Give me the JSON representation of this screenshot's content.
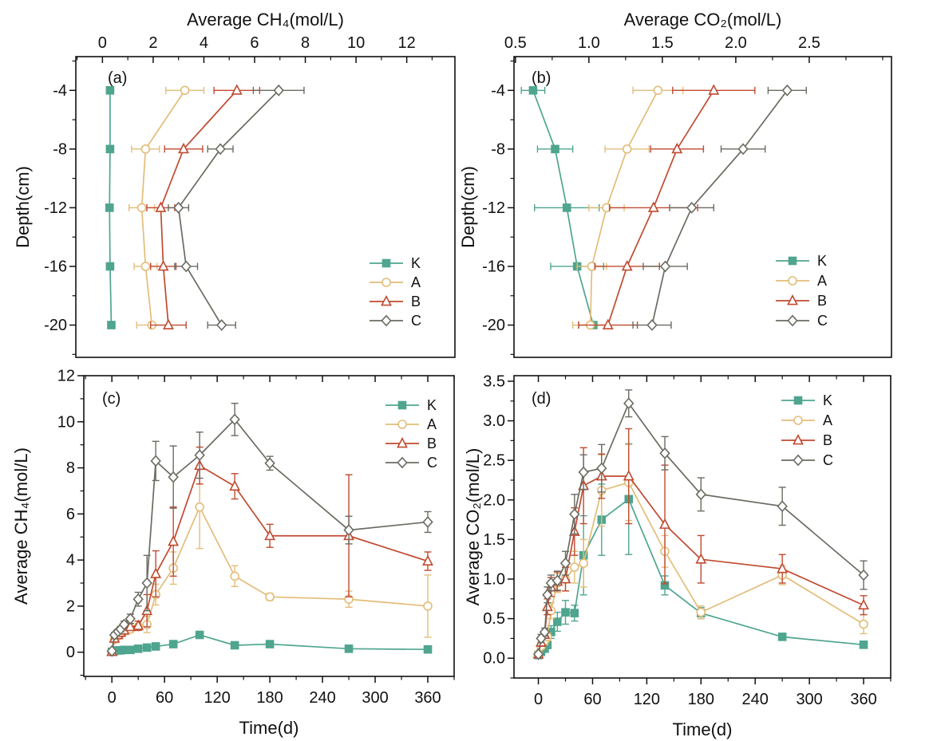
{
  "figure": {
    "background": "#ffffff",
    "series_colors": {
      "K": "#4fa58f",
      "A": "#e3bd79",
      "B": "#c04a30",
      "C": "#6b6b62"
    }
  },
  "chart_data": [
    {
      "id": "a",
      "panel_label": "(a)",
      "type": "line",
      "x_axis_position": "top",
      "xlabel": "Average CH₄(mol/L)",
      "ylabel": "Depth(cm)",
      "xlim": [
        -1.05,
        13.9
      ],
      "xticks": [
        0,
        2,
        4,
        6,
        8,
        10,
        12
      ],
      "x_minor_step": 1,
      "x_decimals": 0,
      "ylim": [
        -22.2,
        -1.7
      ],
      "yticks": [
        -4,
        -8,
        -12,
        -16,
        -20
      ],
      "y_minor_step": 2,
      "y_decimals": 0,
      "grid": false,
      "err_axis": "x",
      "legend": {
        "position": "middle-right",
        "entries": [
          "K",
          "A",
          "B",
          "C"
        ]
      },
      "series": [
        {
          "name": "K",
          "marker": "square",
          "filled": true,
          "color": "#4fa58f",
          "x": [
            0.3,
            0.3,
            0.28,
            0.3,
            0.35
          ],
          "y": [
            -4,
            -8,
            -12,
            -16,
            -20
          ],
          "err": [
            0.07,
            0.07,
            0.07,
            0.07,
            0.12
          ]
        },
        {
          "name": "A",
          "marker": "circle",
          "filled": false,
          "color": "#e3bd79",
          "x": [
            3.25,
            1.7,
            1.55,
            1.7,
            1.95
          ],
          "y": [
            -4,
            -8,
            -12,
            -16,
            -20
          ],
          "err": [
            0.75,
            0.55,
            0.5,
            0.45,
            0.6
          ]
        },
        {
          "name": "B",
          "marker": "triangle",
          "filled": false,
          "color": "#c04a30",
          "x": [
            5.3,
            3.2,
            2.3,
            2.4,
            2.6
          ],
          "y": [
            -4,
            -8,
            -12,
            -16,
            -20
          ],
          "err": [
            0.9,
            0.75,
            0.55,
            0.5,
            0.7
          ]
        },
        {
          "name": "C",
          "marker": "diamond",
          "filled": false,
          "color": "#6b6b62",
          "x": [
            6.95,
            4.65,
            3.0,
            3.3,
            4.7
          ],
          "y": [
            -4,
            -8,
            -12,
            -16,
            -20
          ],
          "err": [
            1.0,
            0.5,
            0.4,
            0.45,
            0.55
          ]
        }
      ]
    },
    {
      "id": "b",
      "panel_label": "(b)",
      "type": "line",
      "x_axis_position": "top",
      "xlabel": "Average CO₂(mol/L)",
      "ylabel": "Depth(cm)",
      "xlim": [
        0.49,
        3.06
      ],
      "xticks": [
        0.5,
        1.0,
        1.5,
        2.0,
        2.5
      ],
      "x_minor_step": 0.25,
      "x_decimals": 1,
      "ylim": [
        -22.2,
        -1.7
      ],
      "yticks": [
        -4,
        -8,
        -12,
        -16,
        -20
      ],
      "y_minor_step": 2,
      "y_decimals": 0,
      "grid": false,
      "err_axis": "x",
      "legend": {
        "position": "middle-right",
        "entries": [
          "K",
          "A",
          "B",
          "C"
        ]
      },
      "series": [
        {
          "name": "K",
          "marker": "square",
          "filled": true,
          "color": "#4fa58f",
          "x": [
            0.62,
            0.77,
            0.85,
            0.92,
            1.03
          ],
          "y": [
            -4,
            -8,
            -12,
            -16,
            -20
          ],
          "err": [
            0.08,
            0.12,
            0.22,
            0.18,
            0.1
          ]
        },
        {
          "name": "A",
          "marker": "circle",
          "filled": false,
          "color": "#e3bd79",
          "x": [
            1.47,
            1.26,
            1.12,
            1.02,
            1.01
          ],
          "y": [
            -4,
            -8,
            -12,
            -16,
            -20
          ],
          "err": [
            0.17,
            0.15,
            0.12,
            0.1,
            0.12
          ]
        },
        {
          "name": "B",
          "marker": "triangle",
          "filled": false,
          "color": "#c04a30",
          "x": [
            1.85,
            1.6,
            1.44,
            1.26,
            1.13
          ],
          "y": [
            -4,
            -8,
            -12,
            -16,
            -20
          ],
          "err": [
            0.28,
            0.18,
            0.3,
            0.22,
            0.2
          ]
        },
        {
          "name": "C",
          "marker": "diamond",
          "filled": false,
          "color": "#6b6b62",
          "x": [
            2.35,
            2.05,
            1.7,
            1.52,
            1.43
          ],
          "y": [
            -4,
            -8,
            -12,
            -16,
            -20
          ],
          "err": [
            0.13,
            0.15,
            0.15,
            0.15,
            0.13
          ]
        }
      ]
    },
    {
      "id": "c",
      "panel_label": "(c)",
      "type": "line",
      "x_axis_position": "bottom",
      "xlabel": "Time(d)",
      "ylabel": "Average CH₄(mol/L)",
      "xlim": [
        -32,
        390
      ],
      "xticks": [
        0,
        60,
        120,
        180,
        240,
        300,
        360
      ],
      "x_minor_step": 30,
      "x_decimals": 0,
      "ylim": [
        -1.05,
        12
      ],
      "yticks": [
        0,
        2,
        4,
        6,
        8,
        10,
        12
      ],
      "y_minor_step": 1,
      "y_decimals": 0,
      "grid": false,
      "err_axis": "y",
      "legend": {
        "position": "top-right",
        "entries": [
          "K",
          "A",
          "B",
          "C"
        ]
      },
      "series": [
        {
          "name": "K",
          "marker": "square",
          "filled": true,
          "color": "#4fa58f",
          "x": [
            0,
            3,
            7,
            10,
            14,
            21,
            30,
            40,
            50,
            70,
            100,
            140,
            180,
            270,
            360
          ],
          "y": [
            0.02,
            0.05,
            0.08,
            0.08,
            0.1,
            0.1,
            0.15,
            0.2,
            0.25,
            0.35,
            0.75,
            0.3,
            0.35,
            0.15,
            0.12
          ],
          "err": [
            0.01,
            0.02,
            0.02,
            0.02,
            0.03,
            0.03,
            0.04,
            0.05,
            0.05,
            0.06,
            0.1,
            0.06,
            0.06,
            0.04,
            0.04
          ]
        },
        {
          "name": "A",
          "marker": "circle",
          "filled": false,
          "color": "#e3bd79",
          "x": [
            0,
            3,
            7,
            10,
            14,
            21,
            30,
            40,
            50,
            70,
            100,
            140,
            180,
            270,
            360
          ],
          "y": [
            0.02,
            0.55,
            0.7,
            0.8,
            0.9,
            1.0,
            1.1,
            1.2,
            2.5,
            3.65,
            6.3,
            3.3,
            2.4,
            2.3,
            2.0
          ],
          "err": [
            0.01,
            0.08,
            0.1,
            0.1,
            0.12,
            0.15,
            0.15,
            0.35,
            0.45,
            0.7,
            1.8,
            0.45,
            0.15,
            0.35,
            1.35
          ]
        },
        {
          "name": "B",
          "marker": "triangle",
          "filled": false,
          "color": "#c04a30",
          "x": [
            0,
            3,
            7,
            10,
            14,
            21,
            30,
            40,
            50,
            70,
            100,
            140,
            180,
            270,
            360
          ],
          "y": [
            0.02,
            0.6,
            0.75,
            0.85,
            0.95,
            1.1,
            1.15,
            1.8,
            3.4,
            4.8,
            8.1,
            7.2,
            5.05,
            5.05,
            3.95
          ],
          "err": [
            0.01,
            0.1,
            0.1,
            0.1,
            0.12,
            0.15,
            0.2,
            0.7,
            1.0,
            1.5,
            0.8,
            0.55,
            0.5,
            2.65,
            0.4
          ]
        },
        {
          "name": "C",
          "marker": "diamond",
          "filled": false,
          "color": "#6b6b62",
          "x": [
            0,
            3,
            7,
            10,
            14,
            21,
            30,
            40,
            50,
            70,
            100,
            140,
            180,
            270,
            360
          ],
          "y": [
            0.05,
            0.75,
            0.9,
            1.0,
            1.2,
            1.45,
            2.3,
            3.0,
            8.3,
            7.6,
            8.55,
            10.1,
            8.2,
            5.3,
            5.65
          ],
          "err": [
            0.01,
            0.1,
            0.1,
            0.12,
            0.15,
            0.2,
            0.3,
            1.2,
            0.85,
            1.35,
            1.0,
            0.7,
            0.3,
            0.6,
            0.45
          ]
        }
      ]
    },
    {
      "id": "d",
      "panel_label": "(d)",
      "type": "line",
      "x_axis_position": "bottom",
      "xlabel": "Time(d)",
      "ylabel": "Average CO₂(mol/L)",
      "xlim": [
        -27,
        390
      ],
      "xticks": [
        0,
        60,
        120,
        180,
        240,
        300,
        360
      ],
      "x_minor_step": 30,
      "x_decimals": 0,
      "ylim": [
        -0.25,
        3.57
      ],
      "yticks": [
        0.0,
        0.5,
        1.0,
        1.5,
        2.0,
        2.5,
        3.0,
        3.5
      ],
      "y_minor_step": 0.25,
      "y_decimals": 1,
      "grid": false,
      "err_axis": "y",
      "legend": {
        "position": "top-right",
        "entries": [
          "K",
          "A",
          "B",
          "C"
        ]
      },
      "series": [
        {
          "name": "K",
          "marker": "square",
          "filled": true,
          "color": "#4fa58f",
          "x": [
            0,
            3,
            7,
            10,
            14,
            21,
            30,
            40,
            50,
            70,
            100,
            140,
            180,
            270,
            360
          ],
          "y": [
            0.04,
            0.08,
            0.12,
            0.17,
            0.33,
            0.46,
            0.58,
            0.57,
            1.3,
            1.75,
            2.01,
            0.92,
            0.57,
            0.27,
            0.17
          ],
          "err": [
            0.01,
            0.02,
            0.03,
            0.05,
            0.08,
            0.12,
            0.15,
            0.1,
            0.5,
            0.45,
            0.7,
            0.12,
            0.07,
            0.04,
            0.03
          ]
        },
        {
          "name": "A",
          "marker": "circle",
          "filled": false,
          "color": "#e3bd79",
          "x": [
            0,
            3,
            7,
            10,
            14,
            21,
            30,
            40,
            50,
            70,
            100,
            140,
            180,
            270,
            360
          ],
          "y": [
            0.05,
            0.15,
            0.22,
            0.27,
            0.6,
            0.95,
            1.0,
            1.15,
            1.2,
            2.12,
            2.22,
            1.35,
            0.58,
            1.05,
            0.43
          ],
          "err": [
            0.01,
            0.03,
            0.05,
            0.05,
            0.1,
            0.12,
            0.15,
            0.2,
            0.3,
            0.45,
            0.48,
            0.2,
            0.08,
            0.12,
            0.12
          ]
        },
        {
          "name": "B",
          "marker": "triangle",
          "filled": false,
          "color": "#c04a30",
          "x": [
            0,
            3,
            7,
            10,
            14,
            21,
            30,
            40,
            50,
            70,
            100,
            140,
            180,
            270,
            360
          ],
          "y": [
            0.05,
            0.2,
            0.3,
            0.65,
            0.9,
            0.97,
            1.0,
            1.6,
            2.18,
            2.3,
            2.3,
            1.69,
            1.25,
            1.13,
            0.67
          ],
          "err": [
            0.01,
            0.05,
            0.05,
            0.1,
            0.12,
            0.12,
            0.15,
            0.3,
            0.48,
            0.28,
            0.6,
            0.75,
            0.3,
            0.18,
            0.12
          ]
        },
        {
          "name": "C",
          "marker": "diamond",
          "filled": false,
          "color": "#6b6b62",
          "x": [
            0,
            3,
            7,
            10,
            14,
            21,
            30,
            40,
            50,
            70,
            100,
            140,
            180,
            270,
            360
          ],
          "y": [
            0.05,
            0.25,
            0.33,
            0.8,
            0.95,
            0.98,
            1.2,
            1.82,
            2.35,
            2.4,
            3.22,
            2.59,
            2.07,
            1.92,
            1.05
          ],
          "err": [
            0.01,
            0.05,
            0.05,
            0.1,
            0.1,
            0.12,
            0.15,
            0.25,
            0.22,
            0.3,
            0.17,
            0.21,
            0.21,
            0.24,
            0.18
          ]
        }
      ]
    }
  ]
}
